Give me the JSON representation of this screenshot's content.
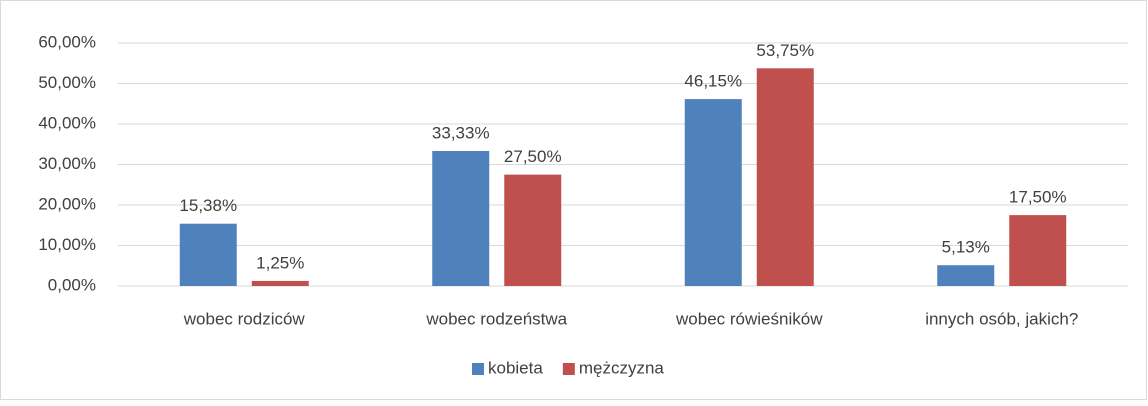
{
  "chart_data": {
    "type": "bar",
    "categories": [
      "wobec rodziców",
      "wobec rodzeństwa",
      "wobec rówieśników",
      "innych osób, jakich?"
    ],
    "series": [
      {
        "name": "kobieta",
        "color": "#4f81bd",
        "values": [
          15.38,
          33.33,
          46.15,
          5.13
        ],
        "value_labels": [
          "15,38%",
          "33,33%",
          "46,15%",
          "5,13%"
        ]
      },
      {
        "name": "mężczyzna",
        "color": "#c0504d",
        "values": [
          1.25,
          27.5,
          53.75,
          17.5
        ],
        "value_labels": [
          "1,25%",
          "27,50%",
          "53,75%",
          "17,50%"
        ]
      }
    ],
    "ylim": [
      0,
      60
    ],
    "yticks": [
      {
        "value": 0,
        "label": "0,00%"
      },
      {
        "value": 10,
        "label": "10,00%"
      },
      {
        "value": 20,
        "label": "20,00%"
      },
      {
        "value": 30,
        "label": "30,00%"
      },
      {
        "value": 40,
        "label": "40,00%"
      },
      {
        "value": 50,
        "label": "50,00%"
      },
      {
        "value": 60,
        "label": "60,00%"
      }
    ],
    "grid": true,
    "legend": "bottom"
  }
}
